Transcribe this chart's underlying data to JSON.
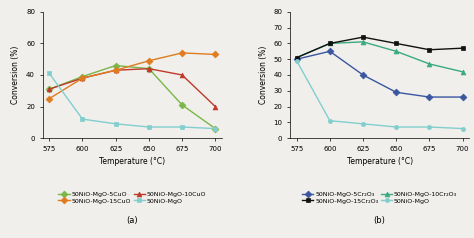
{
  "x": [
    575,
    600,
    625,
    650,
    675,
    700
  ],
  "chart_a": {
    "series": [
      {
        "label": "50NiO-MgO-5CuO",
        "color": "#7ab648",
        "marker": "D",
        "markersize": 3.5,
        "values": [
          31,
          39,
          46,
          44,
          21,
          6
        ]
      },
      {
        "label": "50NiO-MgO-10CuO",
        "color": "#c0392b",
        "marker": "^",
        "markersize": 3.5,
        "values": [
          31,
          38,
          43,
          44,
          40,
          20
        ]
      },
      {
        "label": "50NiO-MgO-15CuO",
        "color": "#e07b20",
        "marker": "D",
        "markersize": 3.5,
        "values": [
          25,
          38,
          43,
          49,
          54,
          53
        ]
      },
      {
        "label": "50NiO-MgO",
        "color": "#82cece",
        "marker": "s",
        "markersize": 3,
        "values": [
          41,
          12,
          9,
          7,
          7,
          6
        ]
      }
    ],
    "subtitle": "(a)",
    "ylabel": "Conversion (%)",
    "xlabel": "Temperature (°C)",
    "ylim": [
      0,
      80
    ],
    "yticks": [
      0,
      20,
      40,
      60,
      80
    ],
    "xticks": [
      575,
      600,
      625,
      650,
      675,
      700
    ]
  },
  "chart_b": {
    "series": [
      {
        "label": "50NiO-MgO-5Cr₂O₃",
        "color": "#3a56a0",
        "marker": "D",
        "markersize": 3.5,
        "values": [
          50,
          55,
          40,
          29,
          26,
          26
        ]
      },
      {
        "label": "50NiO-MgO-10Cr₂O₃",
        "color": "#3aaa80",
        "marker": "^",
        "markersize": 3.5,
        "values": [
          51,
          60,
          61,
          55,
          47,
          42
        ]
      },
      {
        "label": "50NiO-MgO-15Cr₂O₃",
        "color": "#111111",
        "marker": "s",
        "markersize": 3.5,
        "values": [
          51,
          60,
          64,
          60,
          56,
          57
        ]
      },
      {
        "label": "50NiO-MgO",
        "color": "#82cece",
        "marker": "o",
        "markersize": 3,
        "values": [
          49,
          11,
          9,
          7,
          7,
          6
        ]
      }
    ],
    "subtitle": "(b)",
    "ylabel": "Conversion (%)",
    "xlabel": "Temperature (°C)",
    "ylim": [
      0,
      80
    ],
    "yticks": [
      0,
      10,
      20,
      30,
      40,
      50,
      60,
      70,
      80
    ],
    "xticks": [
      575,
      600,
      625,
      650,
      675,
      700
    ]
  },
  "fig_width": 4.74,
  "fig_height": 2.38,
  "dpi": 100,
  "linewidth": 1.0,
  "tick_labelsize": 5,
  "axis_labelsize": 5.5,
  "background_color": "#f0efeb"
}
